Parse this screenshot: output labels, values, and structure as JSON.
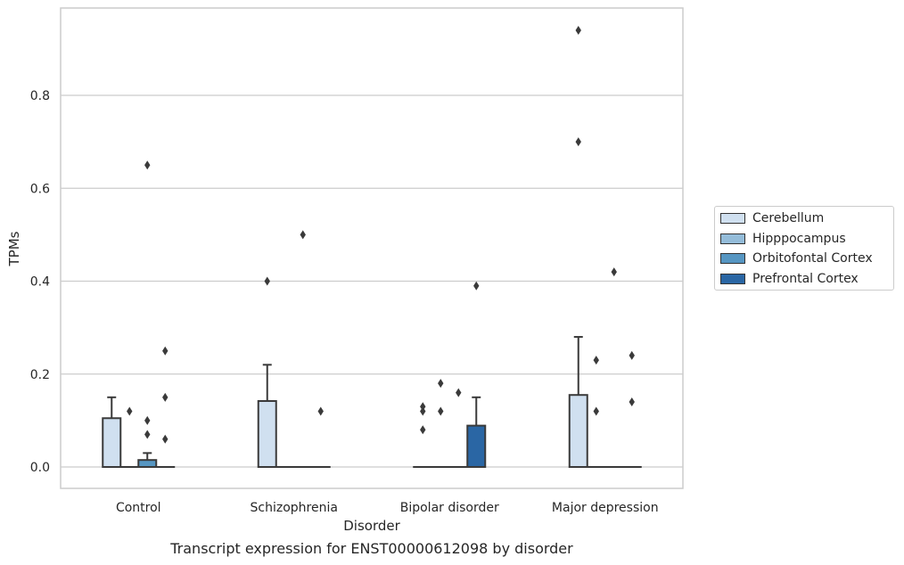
{
  "chart_data": {
    "type": "box",
    "xlabel": "Disorder",
    "ylabel": "TPMs",
    "caption": "Transcript expression for ENST00000612098 by disorder",
    "categories": [
      "Control",
      "Schizophrenia",
      "Bipolar disorder",
      "Major depression"
    ],
    "ylim": [
      -0.045,
      0.99
    ],
    "yticks": [
      0.0,
      0.2,
      0.4,
      0.6,
      0.8
    ],
    "ytick_labels": [
      "0.0",
      "0.2",
      "0.4",
      "0.6",
      "0.8"
    ],
    "grid": true,
    "legend_position": "right",
    "series": [
      {
        "name": "Cerebellum",
        "color": "#d0e0f0",
        "boxes": [
          {
            "q1": 0.0,
            "median": 0.0,
            "q3": 0.105,
            "whisker_low": 0.0,
            "whisker_high": 0.15,
            "outliers": []
          },
          {
            "q1": 0.0,
            "median": 0.0,
            "q3": 0.142,
            "whisker_low": 0.0,
            "whisker_high": 0.22,
            "outliers": [
              0.4
            ]
          },
          {
            "q1": 0.0,
            "median": 0.0,
            "q3": 0.0,
            "whisker_low": 0.0,
            "whisker_high": 0.0,
            "outliers": [
              0.08,
              0.12,
              0.13
            ]
          },
          {
            "q1": 0.0,
            "median": 0.0,
            "q3": 0.155,
            "whisker_low": 0.0,
            "whisker_high": 0.28,
            "outliers": [
              0.7,
              0.94
            ]
          }
        ]
      },
      {
        "name": "Hipppocampus",
        "color": "#94bcd9",
        "boxes": [
          {
            "q1": 0.0,
            "median": 0.0,
            "q3": 0.0,
            "whisker_low": 0.0,
            "whisker_high": 0.0,
            "outliers": [
              0.12
            ]
          },
          {
            "q1": 0.0,
            "median": 0.0,
            "q3": 0.0,
            "whisker_low": 0.0,
            "whisker_high": 0.0,
            "outliers": []
          },
          {
            "q1": 0.0,
            "median": 0.0,
            "q3": 0.0,
            "whisker_low": 0.0,
            "whisker_high": 0.0,
            "outliers": [
              0.12,
              0.18
            ]
          },
          {
            "q1": 0.0,
            "median": 0.0,
            "q3": 0.0,
            "whisker_low": 0.0,
            "whisker_high": 0.0,
            "outliers": [
              0.12,
              0.23
            ]
          }
        ]
      },
      {
        "name": "Orbitofontal Cortex",
        "color": "#5696c2",
        "boxes": [
          {
            "q1": 0.0,
            "median": 0.0,
            "q3": 0.015,
            "whisker_low": 0.0,
            "whisker_high": 0.03,
            "outliers": [
              0.07,
              0.1,
              0.65
            ]
          },
          {
            "q1": 0.0,
            "median": 0.0,
            "q3": 0.0,
            "whisker_low": 0.0,
            "whisker_high": 0.0,
            "outliers": [
              0.5
            ]
          },
          {
            "q1": 0.0,
            "median": 0.0,
            "q3": 0.0,
            "whisker_low": 0.0,
            "whisker_high": 0.0,
            "outliers": [
              0.16
            ]
          },
          {
            "q1": 0.0,
            "median": 0.0,
            "q3": 0.0,
            "whisker_low": 0.0,
            "whisker_high": 0.0,
            "outliers": [
              0.42
            ]
          }
        ]
      },
      {
        "name": "Prefrontal Cortex",
        "color": "#2a66a4",
        "boxes": [
          {
            "q1": 0.0,
            "median": 0.0,
            "q3": 0.0,
            "whisker_low": 0.0,
            "whisker_high": 0.0,
            "outliers": [
              0.06,
              0.15,
              0.25
            ]
          },
          {
            "q1": 0.0,
            "median": 0.0,
            "q3": 0.0,
            "whisker_low": 0.0,
            "whisker_high": 0.0,
            "outliers": [
              0.12
            ]
          },
          {
            "q1": 0.0,
            "median": 0.0,
            "q3": 0.089,
            "whisker_low": 0.0,
            "whisker_high": 0.15,
            "outliers": [
              0.39
            ]
          },
          {
            "q1": 0.0,
            "median": 0.0,
            "q3": 0.0,
            "whisker_low": 0.0,
            "whisker_high": 0.0,
            "outliers": [
              0.14,
              0.24
            ]
          }
        ]
      }
    ]
  },
  "colors": {
    "grid": "#cccccc",
    "frame": "#cccccc",
    "box_edge": "#3a3a3a",
    "outlier": "#3a3a3a"
  }
}
